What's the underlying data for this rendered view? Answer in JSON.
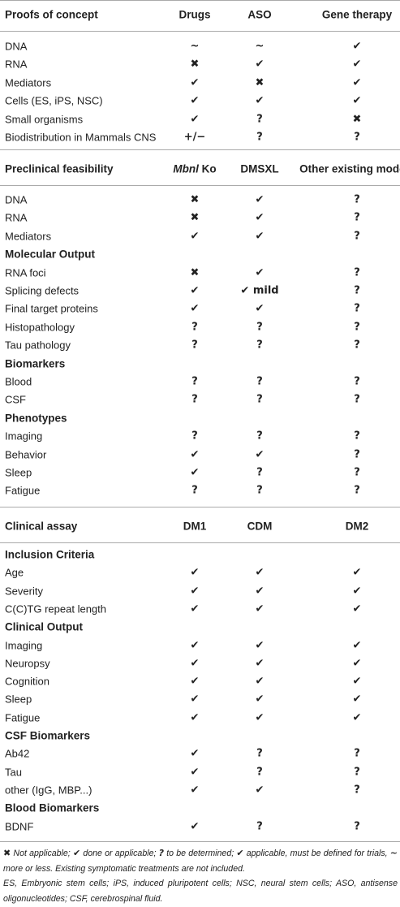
{
  "sections": [
    {
      "header": [
        "Proofs of concept",
        "Drugs",
        "ASO",
        "Gene therapy"
      ],
      "rows": [
        {
          "label": "DNA",
          "cells": [
            "~",
            "~",
            "✔"
          ]
        },
        {
          "label": "RNA",
          "cells": [
            "✖",
            "✔",
            "✔"
          ]
        },
        {
          "label": "Mediators",
          "cells": [
            "✔",
            "✖",
            "✔"
          ]
        },
        {
          "label": "Cells (ES, iPS, NSC)",
          "cells": [
            "✔",
            "✔",
            "✔"
          ]
        },
        {
          "label": "Small organisms",
          "cells": [
            "✔",
            "?",
            "✖"
          ]
        },
        {
          "label": "Biodistribution in Mammals CNS",
          "cells": [
            "+/−",
            "?",
            "?"
          ]
        }
      ]
    },
    {
      "header": [
        "Preclinical feasibility",
        {
          "italic": "Mbnl",
          "plain": "Ko"
        },
        "DMSXL",
        "Other existing models"
      ],
      "rows": [
        {
          "label": "DNA",
          "cells": [
            "✖",
            "✔",
            "?"
          ]
        },
        {
          "label": "RNA",
          "cells": [
            "✖",
            "✔",
            "?"
          ]
        },
        {
          "label": "Mediators",
          "cells": [
            "✔",
            "✔",
            "?"
          ]
        },
        {
          "label": "Molecular Output"
        },
        {
          "label": "RNA foci",
          "cells": [
            "✖",
            "✔",
            "?"
          ]
        },
        {
          "label": "Splicing defects",
          "cells": [
            "✔",
            "✔ mild",
            "?"
          ]
        },
        {
          "label": "Final target proteins",
          "cells": [
            "✔",
            "✔",
            "?"
          ]
        },
        {
          "label": "Histopathology",
          "cells": [
            "?",
            "?",
            "?"
          ]
        },
        {
          "label": "Tau pathology",
          "cells": [
            "?",
            "?",
            "?"
          ]
        },
        {
          "label": "Biomarkers"
        },
        {
          "label": "Blood",
          "cells": [
            "?",
            "?",
            "?"
          ]
        },
        {
          "label": "CSF",
          "cells": [
            "?",
            "?",
            "?"
          ]
        },
        {
          "label": "Phenotypes"
        },
        {
          "label": "Imaging",
          "cells": [
            "?",
            "?",
            "?"
          ]
        },
        {
          "label": "Behavior",
          "cells": [
            "✔",
            "✔",
            "?"
          ]
        },
        {
          "label": "Sleep",
          "cells": [
            "✔",
            "?",
            "?"
          ]
        },
        {
          "label": "Fatigue",
          "cells": [
            "?",
            "?",
            "?"
          ]
        }
      ]
    },
    {
      "header": [
        "Clinical assay",
        "DM1",
        "CDM",
        "DM2"
      ],
      "rows": [
        {
          "label": "Inclusion Criteria"
        },
        {
          "label": "Age",
          "cells": [
            "✔",
            "✔",
            "✔"
          ]
        },
        {
          "label": "Severity",
          "cells": [
            "✔",
            "✔",
            "✔"
          ]
        },
        {
          "label": "C(C)TG repeat length",
          "cells": [
            "✔",
            "✔",
            "✔"
          ]
        },
        {
          "label": "Clinical Output"
        },
        {
          "label": "Imaging",
          "cells": [
            "✔",
            "✔",
            "✔"
          ]
        },
        {
          "label": "Neuropsy",
          "cells": [
            "✔",
            "✔",
            "✔"
          ]
        },
        {
          "label": "Cognition",
          "cells": [
            "✔",
            "✔",
            "✔"
          ]
        },
        {
          "label": "Sleep",
          "cells": [
            "✔",
            "✔",
            "✔"
          ]
        },
        {
          "label": "Fatigue",
          "cells": [
            "✔",
            "✔",
            "✔"
          ]
        },
        {
          "label": "CSF Biomarkers"
        },
        {
          "label": "Ab42",
          "cells": [
            "✔",
            "?",
            "?"
          ]
        },
        {
          "label": "Tau",
          "cells": [
            "✔",
            "?",
            "?"
          ]
        },
        {
          "label": "other (IgG, MBP...)",
          "cells": [
            "✔",
            "✔",
            "?"
          ]
        },
        {
          "label": "Blood Biomarkers"
        },
        {
          "label": "BDNF",
          "cells": [
            "✔",
            "?",
            "?"
          ]
        }
      ]
    }
  ],
  "footnote": [
    [
      {
        "b": "✖"
      },
      {
        "i": " Not applicable; "
      },
      {
        "b": "✔"
      },
      {
        "i": " done or applicable; "
      },
      {
        "b": "?"
      },
      {
        "i": " to be determined; "
      },
      {
        "b": "✔"
      },
      {
        "i": " applicable, must be defined for trials, "
      },
      {
        "b": "~"
      },
      {
        "i": " more or less. Existing symptomatic treatments are not included."
      }
    ],
    "ES, Embryonic stem cells; iPS, induced pluripotent cells; NSC, neural stem cells; ASO, antisense oligonucleotides; CSF, cerebrospinal fluid."
  ]
}
